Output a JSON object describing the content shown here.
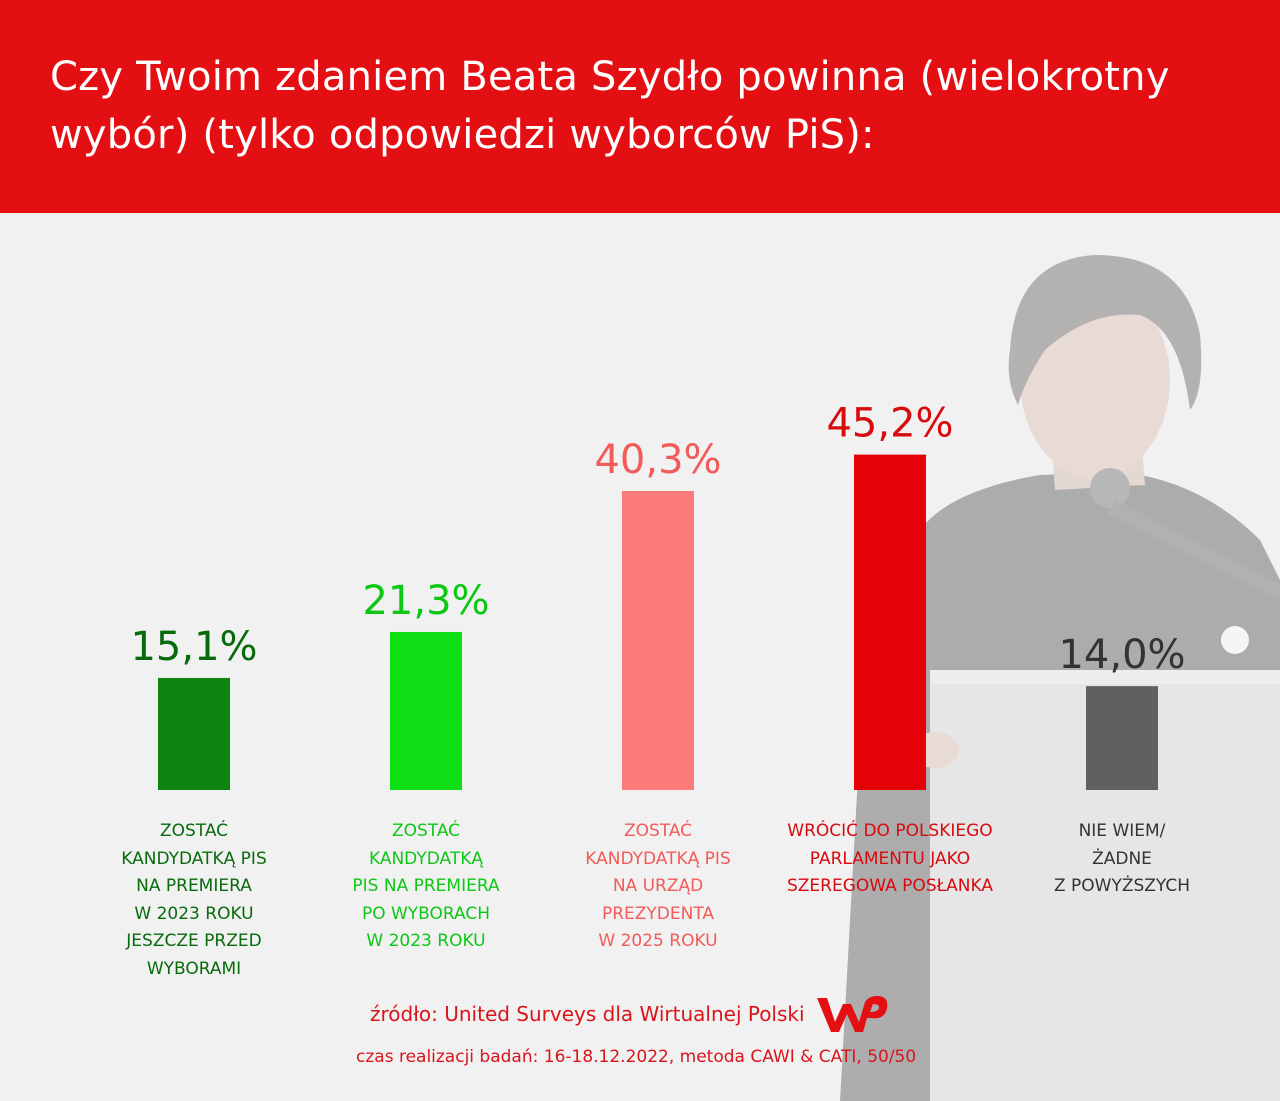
{
  "header": {
    "title": "Czy Twoim zdaniem Beata Szydło powinna (wielokrotny wybór) (tylko odpowiedzi wyborców PiS):",
    "background": "#e30f13"
  },
  "chart_data": {
    "type": "bar",
    "title": "Czy Twoim zdaniem Beata Szydło powinna (wielokrotny wybór) (tylko odpowiedzi wyborców PiS):",
    "categories": [
      "ZOSTAĆ KANDYDATKĄ PIS NA PREMIERA W 2023 ROKU JESZCZE PRZED WYBORAMI",
      "ZOSTAĆ KANDYDATKĄ PIS NA PREMIERA PO WYBORACH W 2023 ROKU",
      "ZOSTAĆ KANDYDATKĄ PIS NA URZĄD PREZYDENTA W 2025 ROKU",
      "WRÓCIĆ DO POLSKIEGO PARLAMENTU JAKO SZEREGOWA POSŁANKA",
      "NIE WIEM/ ŻADNE Z POWYŻSZYCH"
    ],
    "category_lines": [
      [
        "ZOSTAĆ",
        "KANDYDATKĄ PIS",
        "NA PREMIERA",
        "W 2023 ROKU",
        "JESZCZE PRZED",
        "WYBORAMI"
      ],
      [
        "ZOSTAĆ",
        "KANDYDATKĄ",
        "PIS NA PREMIERA",
        "PO WYBORACH",
        "W 2023 ROKU"
      ],
      [
        "ZOSTAĆ",
        "KANDYDATKĄ PIS",
        "NA URZĄD",
        "PREZYDENTA",
        "W 2025 ROKU"
      ],
      [
        "WRÓCIĆ DO POLSKIEGO",
        "PARLAMENTU JAKO",
        "SZEREGOWA POSŁANKA"
      ],
      [
        "NIE WIEM/",
        "ŻADNE",
        "Z POWYŻSZYCH"
      ]
    ],
    "values": [
      15.1,
      21.3,
      40.3,
      45.2,
      14.0
    ],
    "value_labels": [
      "15,1%",
      "21,3%",
      "40,3%",
      "45,2%",
      "14,0%"
    ],
    "bar_colors": [
      "#0b850f",
      "#0ddf14",
      "#fe7b7b",
      "#e40107",
      "#606060"
    ],
    "label_colors": [
      "#076b0b",
      "#0ec715",
      "#f35a5a",
      "#d80a0d",
      "#333333"
    ],
    "value_unit": "%",
    "ylim": [
      0,
      50
    ],
    "grid": false,
    "legend": "none"
  },
  "footer": {
    "source": "źródło: United Surveys dla Wirtualnej Polski",
    "method": "czas realizacji badań: 16-18.12.2022, metoda CAWI & CATI, 50/50",
    "logo_text": "WP",
    "color": "#d9141b"
  }
}
